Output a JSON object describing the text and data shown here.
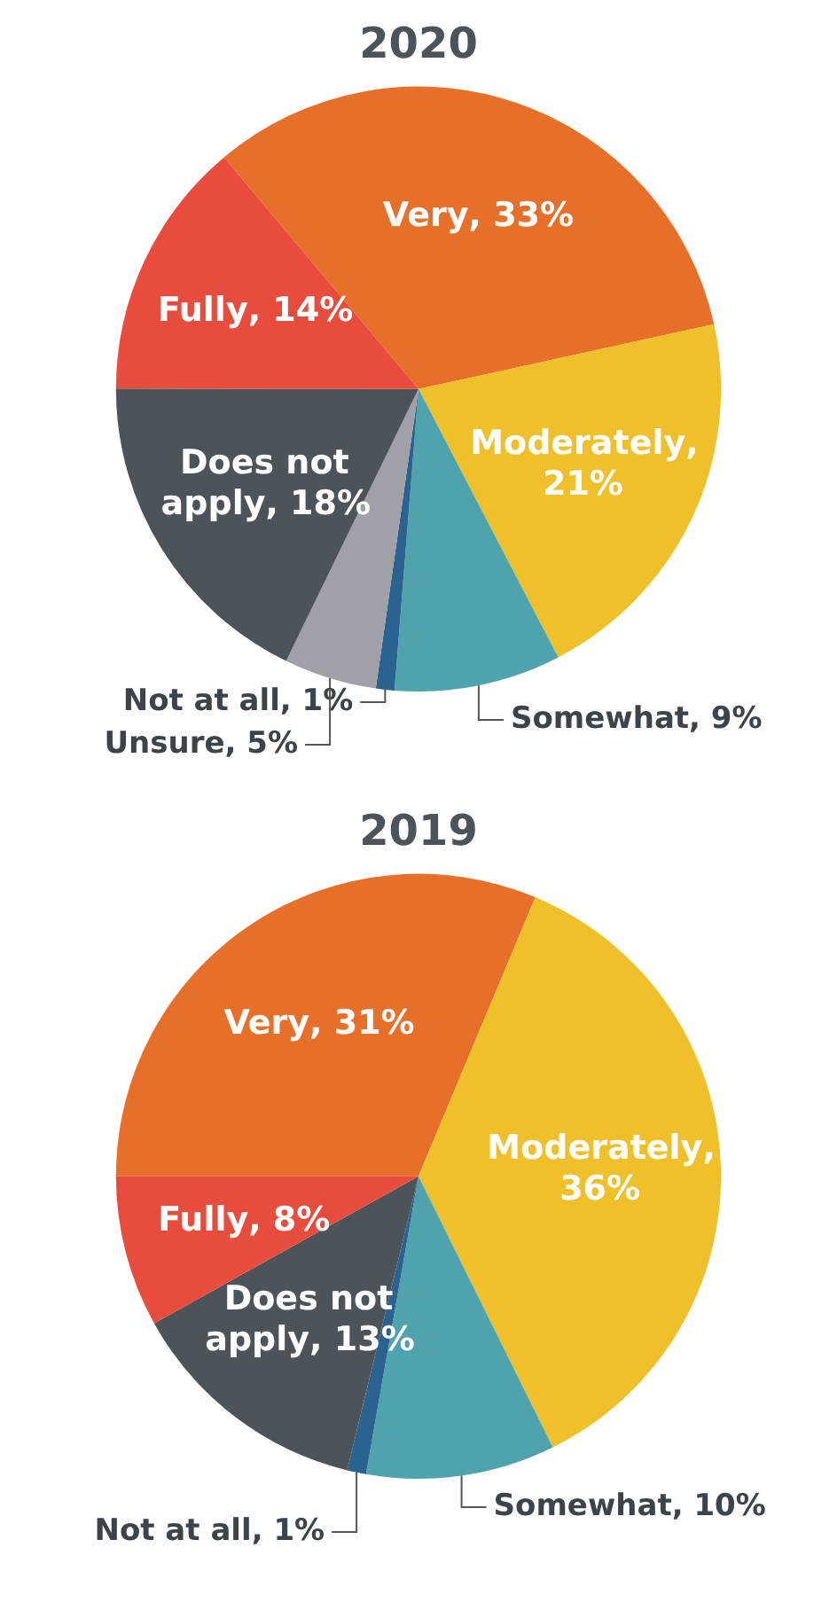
{
  "chart_data": [
    {
      "type": "pie",
      "title": "2020",
      "categories": [
        "Very",
        "Moderately",
        "Somewhat",
        "Not at all",
        "Unsure",
        "Does not apply",
        "Fully"
      ],
      "values": [
        33,
        21,
        9,
        1,
        5,
        18,
        14
      ],
      "value_labels": [
        ", 33%",
        ", 21%",
        ", 9%",
        ", 1%",
        ", 5%",
        ", 18%",
        ", 14%"
      ],
      "colors": [
        "#e6702a",
        "#efc02a",
        "#4fa3ad",
        "#2a6390",
        "#a0a0a6",
        "#4d5459",
        "#e84c3d"
      ]
    },
    {
      "type": "pie",
      "title": "2019",
      "categories": [
        "Very",
        "Moderately",
        "Somewhat",
        "Not at all",
        "Does not apply",
        "Fully"
      ],
      "values": [
        31,
        36,
        10,
        1,
        13,
        8
      ],
      "value_labels": [
        ", 31%",
        ", 36%",
        ", 10%",
        ", 1%",
        ", 13%",
        ", 8%"
      ],
      "colors": [
        "#e6702a",
        "#efc02a",
        "#4fa3ad",
        "#2a6390",
        "#4d5459",
        "#e84c3d"
      ]
    }
  ]
}
